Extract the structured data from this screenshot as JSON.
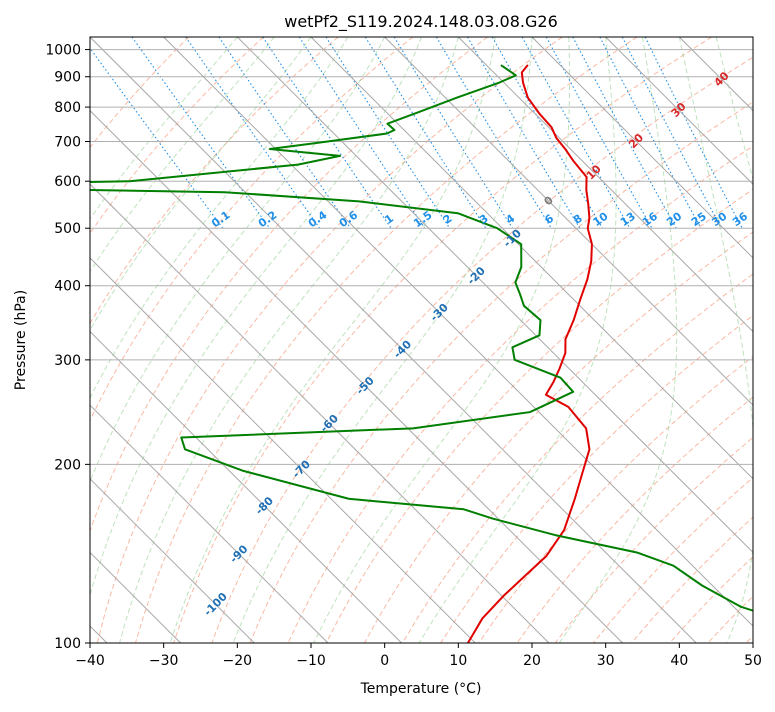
{
  "chart_data": {
    "type": "line",
    "title": "wetPf2_S119.2024.148.03.08.G26",
    "xlabel": "Temperature (°C)",
    "ylabel": "Pressure (hPa)",
    "xlim": [
      -40,
      50
    ],
    "ylim": [
      1050,
      100
    ],
    "y_log_scale": true,
    "skew": 35,
    "grid": true,
    "x_ticks": [
      -40,
      -30,
      -20,
      -10,
      0,
      10,
      20,
      30,
      40,
      50
    ],
    "y_ticks": [
      100,
      200,
      300,
      400,
      500,
      600,
      700,
      800,
      900,
      1000
    ],
    "isotherm_labels": [
      -100,
      -90,
      -80,
      -70,
      -60,
      -50,
      -40,
      -30,
      -20,
      -10
    ],
    "isotherm_label_pressures": [
      116,
      141,
      170,
      196,
      234,
      271,
      312,
      360,
      415,
      480
    ],
    "mixing_ratio_labels": [
      "0.1",
      "0.2",
      "0.4",
      "0.6",
      "1",
      "1.5",
      "2",
      "3",
      "4",
      "6",
      "8",
      "10",
      "13",
      "16",
      "20",
      "25",
      "30",
      "36"
    ],
    "mixing_ratio_values": [
      0.1,
      0.2,
      0.4,
      0.6,
      1,
      1.5,
      2,
      3,
      4,
      6,
      8,
      10,
      13,
      16,
      20,
      25,
      30,
      36
    ],
    "temp_labels": [
      {
        "text": "0",
        "t": 0,
        "p": 555
      },
      {
        "text": "10",
        "t": 10,
        "p": 620
      },
      {
        "text": "20",
        "t": 20,
        "p": 700
      },
      {
        "text": "30",
        "t": 30,
        "p": 790
      },
      {
        "text": "40",
        "t": 40,
        "p": 890
      }
    ],
    "series": [
      {
        "color": "#e00000",
        "points": [
          {
            "t": 15.5,
            "p": 940
          },
          {
            "t": 13.8,
            "p": 915
          },
          {
            "t": 12.6,
            "p": 880
          },
          {
            "t": 11.2,
            "p": 830
          },
          {
            "t": 10.6,
            "p": 780
          },
          {
            "t": 10.4,
            "p": 740
          },
          {
            "t": 9.6,
            "p": 710
          },
          {
            "t": 9.3,
            "p": 680
          },
          {
            "t": 8.8,
            "p": 650
          },
          {
            "t": 8.4,
            "p": 610
          },
          {
            "t": 6.6,
            "p": 580
          },
          {
            "t": 5.0,
            "p": 550
          },
          {
            "t": 3.2,
            "p": 520
          },
          {
            "t": 1.6,
            "p": 500
          },
          {
            "t": 0.0,
            "p": 470
          },
          {
            "t": -2.4,
            "p": 440
          },
          {
            "t": -5.4,
            "p": 410
          },
          {
            "t": -9.0,
            "p": 380
          },
          {
            "t": -12.8,
            "p": 350
          },
          {
            "t": -16.5,
            "p": 325
          },
          {
            "t": -18.4,
            "p": 308
          },
          {
            "t": -21.3,
            "p": 290
          },
          {
            "t": -24.0,
            "p": 275
          },
          {
            "t": -26.7,
            "p": 262
          },
          {
            "t": -25.3,
            "p": 250
          },
          {
            "t": -25.8,
            "p": 230
          },
          {
            "t": -28.2,
            "p": 212
          },
          {
            "t": -32.0,
            "p": 195
          },
          {
            "t": -36.9,
            "p": 175
          },
          {
            "t": -42.6,
            "p": 155
          },
          {
            "t": -48.6,
            "p": 140
          },
          {
            "t": -54.0,
            "p": 130
          },
          {
            "t": -59.8,
            "p": 120
          },
          {
            "t": -65.7,
            "p": 110
          },
          {
            "t": -71.0,
            "p": 100
          }
        ]
      },
      {
        "color": "#007f00",
        "points": [
          {
            "t": 12.0,
            "p": 940
          },
          {
            "t": 12.6,
            "p": 905
          },
          {
            "t": 9.4,
            "p": 880
          },
          {
            "t": 1.6,
            "p": 830
          },
          {
            "t": -5.5,
            "p": 785
          },
          {
            "t": -11.4,
            "p": 750
          },
          {
            "t": -11.3,
            "p": 732
          },
          {
            "t": -12.8,
            "p": 722
          },
          {
            "t": -24.1,
            "p": 695
          },
          {
            "t": -30.8,
            "p": 680
          },
          {
            "t": -22.2,
            "p": 662
          },
          {
            "t": -29.1,
            "p": 640
          },
          {
            "t": -54.2,
            "p": 600
          },
          {
            "t": -89.3,
            "p": 588
          },
          {
            "t": -42.8,
            "p": 575
          },
          {
            "t": -25.8,
            "p": 555
          },
          {
            "t": -14.0,
            "p": 530
          },
          {
            "t": -10.7,
            "p": 500
          },
          {
            "t": -9.6,
            "p": 470
          },
          {
            "t": -12.7,
            "p": 430
          },
          {
            "t": -15.6,
            "p": 405
          },
          {
            "t": -16.5,
            "p": 388
          },
          {
            "t": -17.6,
            "p": 370
          },
          {
            "t": -17.3,
            "p": 350
          },
          {
            "t": -19.5,
            "p": 330
          },
          {
            "t": -24.8,
            "p": 315
          },
          {
            "t": -26.2,
            "p": 300
          },
          {
            "t": -22.4,
            "p": 280
          },
          {
            "t": -22.6,
            "p": 265
          },
          {
            "t": -31.2,
            "p": 245
          },
          {
            "t": -49.3,
            "p": 230
          },
          {
            "t": -82.0,
            "p": 222
          },
          {
            "t": -83.1,
            "p": 212
          },
          {
            "t": -78.1,
            "p": 195
          },
          {
            "t": -67.6,
            "p": 175
          },
          {
            "t": -53.4,
            "p": 168
          },
          {
            "t": -50.7,
            "p": 162
          },
          {
            "t": -44.5,
            "p": 152
          },
          {
            "t": -35.7,
            "p": 142
          },
          {
            "t": -32.6,
            "p": 135
          },
          {
            "t": -31.4,
            "p": 125
          },
          {
            "t": -29.0,
            "p": 115
          },
          {
            "t": -24.1,
            "p": 108
          },
          {
            "t": -20.4,
            "p": 100
          }
        ]
      }
    ]
  }
}
